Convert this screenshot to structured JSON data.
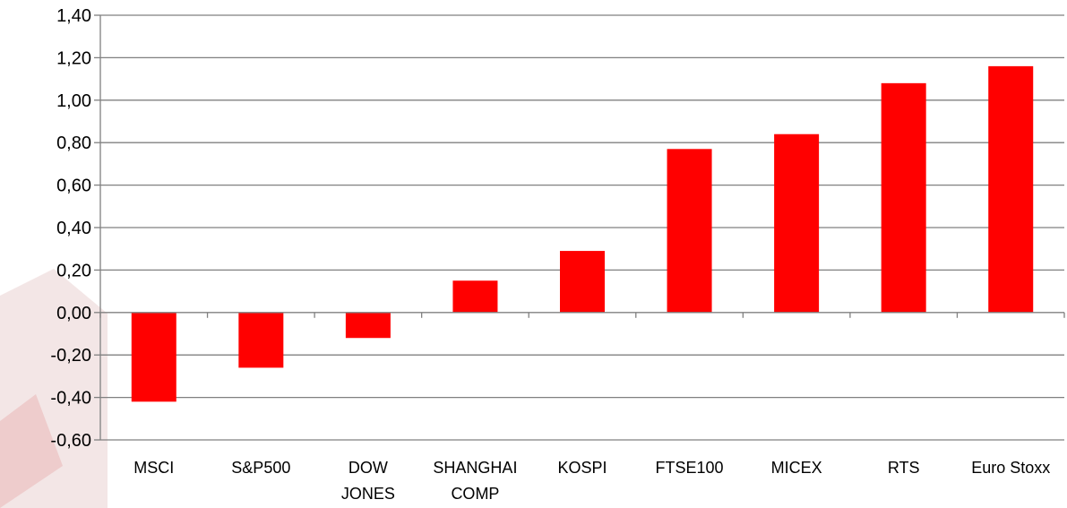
{
  "chart_data": {
    "type": "bar",
    "title": "",
    "xlabel": "",
    "ylabel": "",
    "categories": [
      [
        "MSCI"
      ],
      [
        "S&P500"
      ],
      [
        "DOW",
        "JONES"
      ],
      [
        "SHANGHAI",
        "COMP"
      ],
      [
        "KOSPI"
      ],
      [
        "FTSE100"
      ],
      [
        "MICEX"
      ],
      [
        "RTS"
      ],
      [
        "Euro Stoxx"
      ]
    ],
    "series": [
      {
        "values": [
          -0.42,
          -0.26,
          -0.12,
          0.15,
          0.29,
          0.77,
          0.84,
          1.08,
          1.16
        ]
      }
    ],
    "ylim": [
      -0.6,
      1.4
    ],
    "yticks": [
      -0.6,
      -0.4,
      -0.2,
      0.0,
      0.2,
      0.4,
      0.6,
      0.8,
      1.0,
      1.2,
      1.4
    ],
    "ytick_labels": [
      "-0,60",
      "-0,40",
      "-0,20",
      "0,00",
      "0,20",
      "0,40",
      "0,60",
      "0,80",
      "1,00",
      "1,20",
      "1,40"
    ],
    "grid": true,
    "legend": "none",
    "colors": {
      "bar": "#ff0000",
      "grid": "#808080",
      "axis": "#808080",
      "background_shape": "#f0dcdc"
    }
  }
}
